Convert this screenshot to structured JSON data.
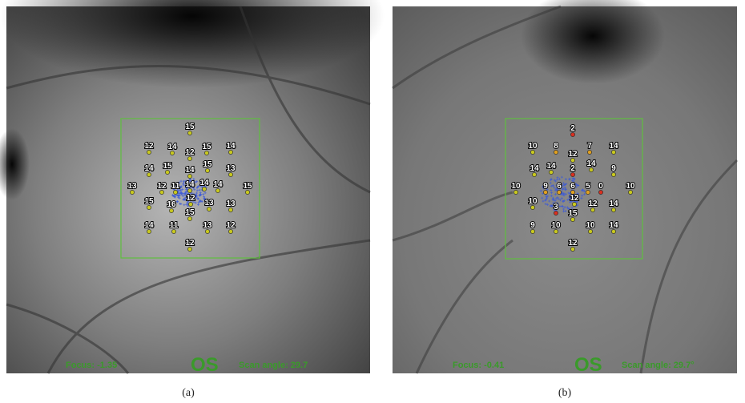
{
  "panels": [
    {
      "points": [
        15,
        12,
        14,
        12,
        15,
        14,
        14,
        15,
        14,
        15,
        13,
        13,
        12,
        11,
        14,
        14,
        14,
        15,
        15,
        16,
        12,
        13,
        13,
        15,
        14,
        11,
        13,
        12,
        12
      ],
      "focus": "Focus: -1.35",
      "eye": "OS",
      "scan_angle": "Scan angle: 29.7",
      "caption": "(a)"
    },
    {
      "points": [
        2,
        10,
        8,
        7,
        14,
        12,
        14,
        14,
        2,
        14,
        9,
        10,
        9,
        6,
        6,
        5,
        0,
        10,
        10,
        12,
        12,
        14,
        3,
        15,
        9,
        10,
        10,
        14,
        12
      ],
      "focus": "Focus: -0.41",
      "eye": "OS",
      "scan_angle": "Scan angle: 29.7°",
      "caption": "(b)"
    }
  ]
}
